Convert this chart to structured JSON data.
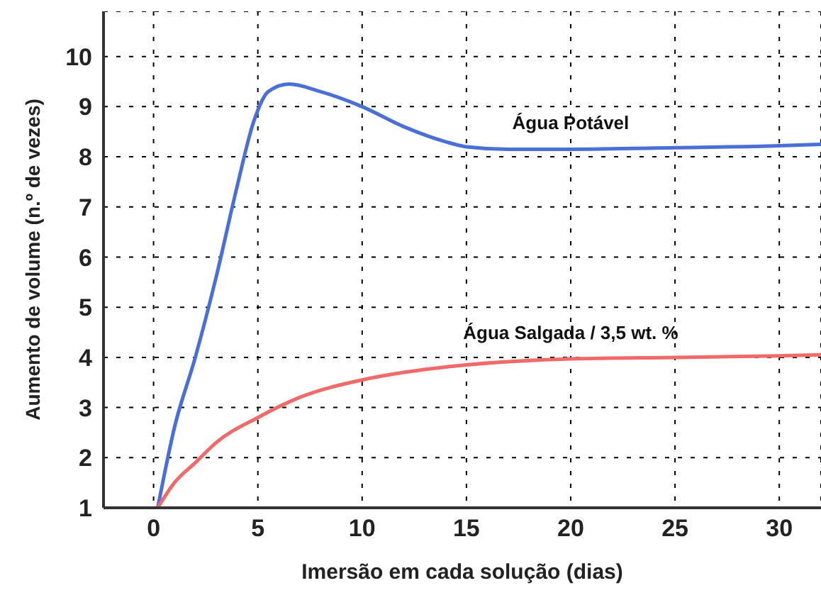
{
  "chart_data": {
    "type": "line",
    "xlabel": "Imersão em cada solução (dias)",
    "ylabel": "Aumento de volume (n.º de vezes)",
    "xlim": [
      -2.4,
      32
    ],
    "ylim": [
      1,
      10.9
    ],
    "xticks": [
      0,
      5,
      10,
      15,
      20,
      25,
      30
    ],
    "yticks": [
      1,
      2,
      3,
      4,
      5,
      6,
      7,
      8,
      9,
      10
    ],
    "grid": true,
    "legend": false,
    "marker": "none",
    "line_style": "solid",
    "series": [
      {
        "name": "Água Potável",
        "color": "#4a6fd6",
        "x": [
          0.2,
          1,
          2,
          3,
          4,
          4.8,
          5.5,
          6.5,
          8,
          10,
          12,
          14,
          15,
          17,
          20,
          25,
          30,
          32
        ],
        "values": [
          1,
          2.6,
          4,
          5.6,
          7.4,
          8.7,
          9.3,
          9.45,
          9.3,
          9,
          8.6,
          8.3,
          8.2,
          8.15,
          8.15,
          8.18,
          8.22,
          8.25
        ]
      },
      {
        "name": "Água Salgada / 3,5 wt. %",
        "color": "#f06a6a",
        "x": [
          0.2,
          1,
          2,
          3,
          5,
          7,
          10,
          12,
          15,
          20,
          25,
          30,
          32
        ],
        "values": [
          1,
          1.5,
          1.9,
          2.3,
          2.8,
          3.2,
          3.55,
          3.7,
          3.85,
          3.97,
          4,
          4.03,
          4.05
        ]
      }
    ]
  }
}
